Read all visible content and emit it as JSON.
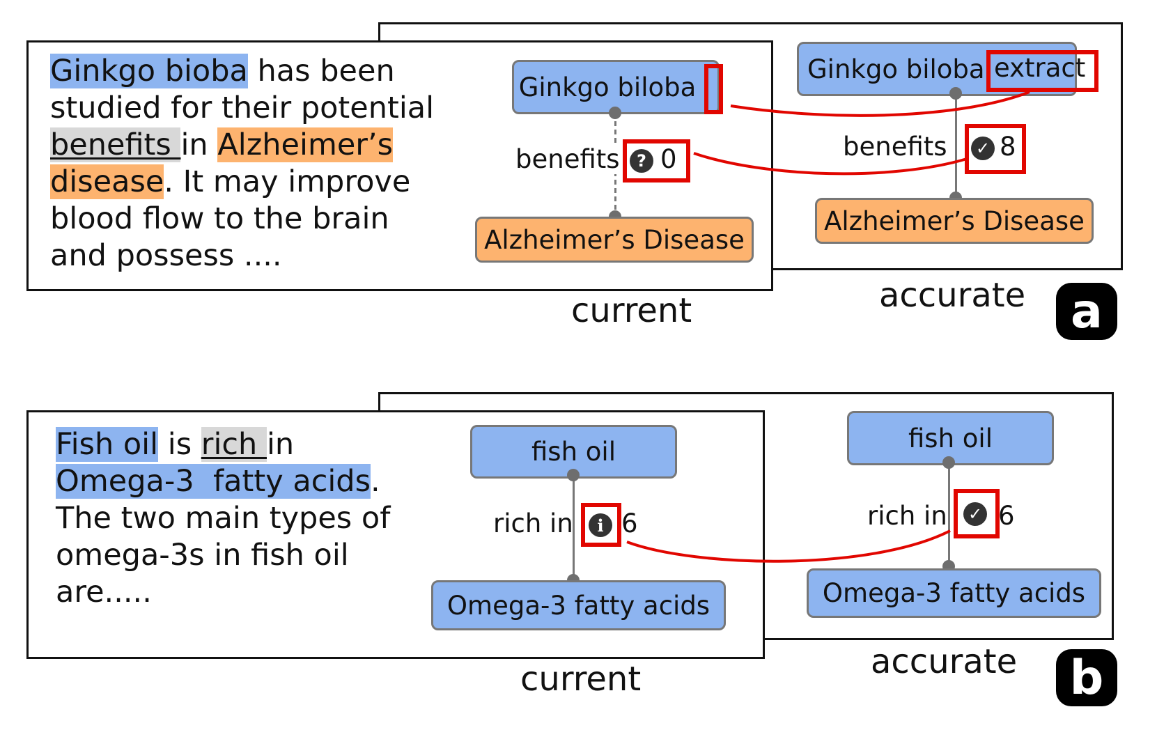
{
  "panel_a": {
    "tag": "a",
    "passage": {
      "l1_hl": "Ginkgo bioba",
      "l1_rest": " has been",
      "l2": "studied for their potential",
      "l3_hl": "benefits ",
      "l3_mid": "in ",
      "l3_hl2": "Alzheimer’s",
      "l4_hl": "disease",
      "l4_rest": ". It may improve",
      "l5": "blood flow to the brain",
      "l6": "and possess ...."
    },
    "current": {
      "caption": "current",
      "source_node": "Ginkgo biloba",
      "relation": "benefits",
      "status_icon": "question-icon",
      "count": "0",
      "target_node": "Alzheimer’s Disease"
    },
    "accurate": {
      "caption": "accurate",
      "source_node": "Ginkgo biloba",
      "source_added": "extract",
      "relation": "benefits",
      "status_icon": "check-icon",
      "count": "8",
      "target_node": "Alzheimer’s Disease"
    }
  },
  "panel_b": {
    "tag": "b",
    "passage": {
      "l1_hl": "Fish oil",
      "l1_mid": " is ",
      "l1_hl2": "rich ",
      "l1_rest": "in",
      "l2_hl": "Omega-3  fatty acids",
      "l2_rest": ".",
      "l3": "The two main types of",
      "l4": "omega-3s in fish oil",
      "l5": "are....."
    },
    "current": {
      "caption": "current",
      "source_node": "fish oil",
      "relation": "rich in",
      "status_icon": "info-icon",
      "count": "6",
      "target_node": "Omega-3 fatty acids"
    },
    "accurate": {
      "caption": "accurate",
      "source_node": "fish oil",
      "relation": "rich in",
      "status_icon": "check-icon",
      "count": "6",
      "target_node": "Omega-3 fatty acids"
    }
  },
  "colors": {
    "entity_blue": "#8db4f0",
    "entity_orange": "#fdb36f",
    "relation_gray": "#d8d8d8",
    "highlight_red": "#e10600"
  }
}
